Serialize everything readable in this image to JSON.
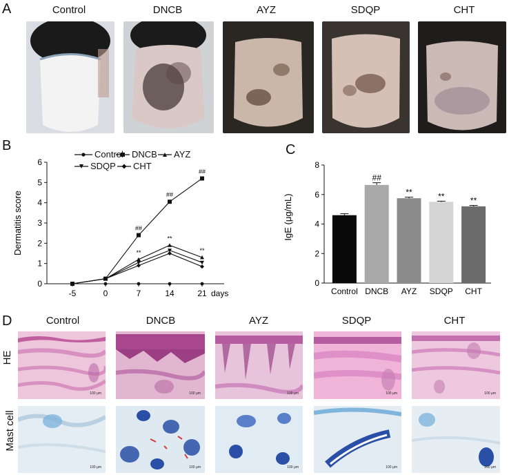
{
  "panels": {
    "A": {
      "letter": "A",
      "groups": [
        "Control",
        "DNCB",
        "AYZ",
        "SDQP",
        "CHT"
      ]
    },
    "B": {
      "letter": "B",
      "legend": [
        "Control",
        "DNCB",
        "AYZ",
        "SDQP",
        "CHT"
      ]
    },
    "C": {
      "letter": "C"
    },
    "D": {
      "letter": "D",
      "groups": [
        "Control",
        "DNCB",
        "AYZ",
        "SDQP",
        "CHT"
      ],
      "row_labels": [
        "HE",
        "Mast cell"
      ],
      "scale_text": "100 μm"
    }
  },
  "chart_data": [
    {
      "type": "line",
      "ylabel": "Dermatitis score",
      "xlabel": "days",
      "x": [
        -5,
        0,
        7,
        14,
        21
      ],
      "x_ticks": [
        "-5",
        "0",
        "7",
        "14",
        "21"
      ],
      "ylim": [
        0,
        6
      ],
      "y_ticks": [
        "0",
        "1",
        "2",
        "3",
        "4",
        "5",
        "6"
      ],
      "legend_position": "top",
      "series": [
        {
          "name": "Control",
          "values": [
            0,
            0,
            0,
            0,
            0
          ]
        },
        {
          "name": "DNCB",
          "values": [
            0,
            0.25,
            2.4,
            4.05,
            5.2
          ]
        },
        {
          "name": "AYZ",
          "values": [
            0,
            0.25,
            1.2,
            1.9,
            1.3
          ]
        },
        {
          "name": "SDQP",
          "values": [
            0,
            0.25,
            1.05,
            1.65,
            1.05
          ]
        },
        {
          "name": "CHT",
          "values": [
            0,
            0.25,
            0.9,
            1.5,
            0.85
          ]
        }
      ],
      "annotations": [
        {
          "x": 7,
          "text": "##"
        },
        {
          "x": 14,
          "text": "##"
        },
        {
          "x": 21,
          "text": "##"
        },
        {
          "x": 7,
          "text": "**"
        },
        {
          "x": 14,
          "text": "**"
        },
        {
          "x": 21,
          "text": "**"
        }
      ]
    },
    {
      "type": "bar",
      "ylabel": "IgE (μg/mL)",
      "categories": [
        "Control",
        "DNCB",
        "AYZ",
        "SDQP",
        "CHT"
      ],
      "values": [
        4.6,
        6.65,
        5.75,
        5.5,
        5.2
      ],
      "errors": [
        0.1,
        0.15,
        0.07,
        0.05,
        0.06
      ],
      "colors": [
        "#0a0a0a",
        "#a9a9a9",
        "#8c8c8c",
        "#d4d4d4",
        "#6b6b6b"
      ],
      "ylim": [
        0,
        8
      ],
      "y_ticks": [
        "0",
        "2",
        "4",
        "6",
        "8"
      ],
      "annotations": [
        "",
        "##",
        "**",
        "**",
        "**"
      ]
    }
  ]
}
